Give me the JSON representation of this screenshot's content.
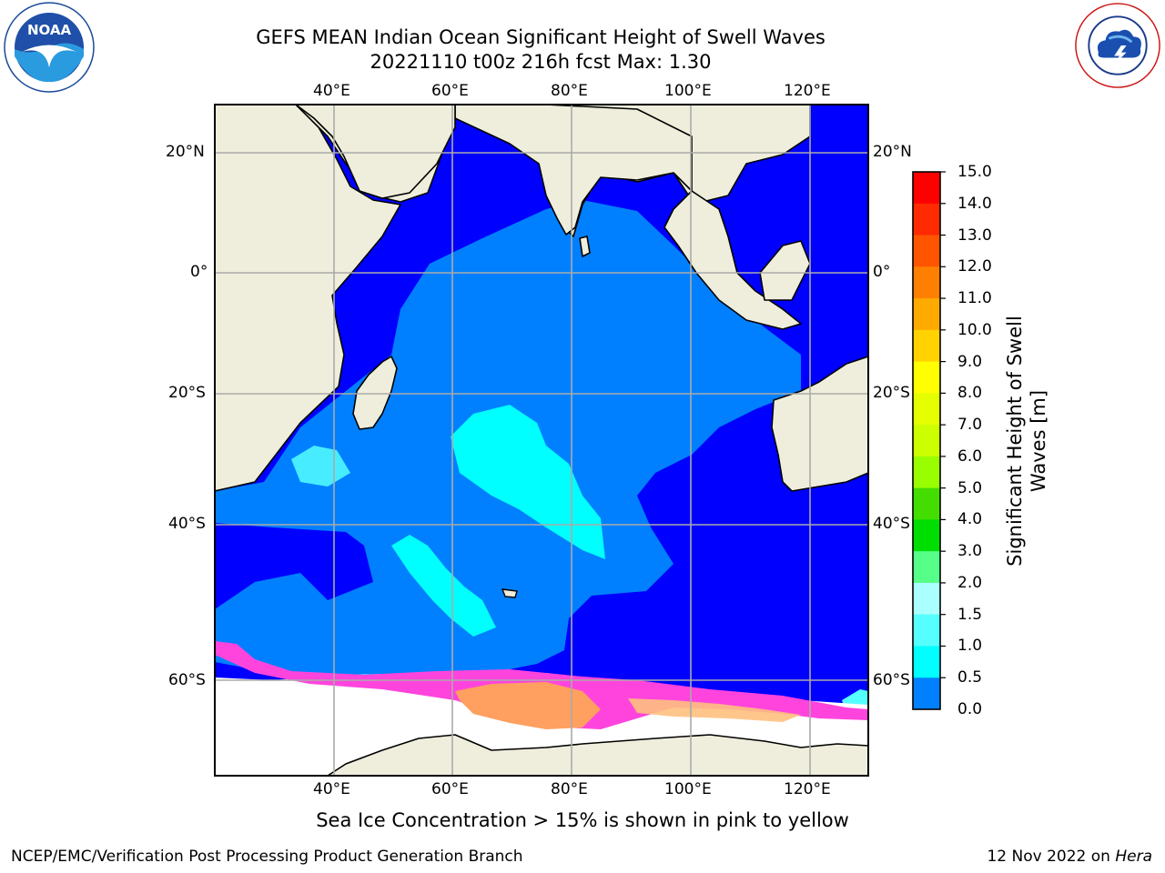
{
  "header": {
    "title_line1": "GEFS MEAN Indian Ocean Significant Height of Swell Waves",
    "title_line2": "20221110 t00z 216h fcst   Max: 1.30"
  },
  "logos": {
    "left": "NOAA",
    "left_ring": "NATIONAL OCEANIC AND ATMOSPHERIC ADMINISTRATION · U.S. DEPARTMENT OF COMMERCE",
    "right_ring": "NATIONAL WEATHER SERVICE"
  },
  "map": {
    "lon_ticks": [
      "40°E",
      "60°E",
      "80°E",
      "100°E",
      "120°E"
    ],
    "lat_ticks": [
      "20°N",
      "0°",
      "20°S",
      "40°S",
      "60°S"
    ],
    "colors": {
      "land": "#efeedc",
      "swell_0_05": "#0000ff",
      "swell_05_1": "#0080ff",
      "swell_1_15": "#00ffff",
      "ice_pink": "#ff44dd",
      "ice_orange": "#ffa060",
      "ice_free": "#ffffff"
    }
  },
  "colorbar": {
    "title": "Significant Height of Swell Waves [m]",
    "labels": [
      "15.0",
      "14.0",
      "13.0",
      "12.0",
      "11.0",
      "10.0",
      "9.0",
      "8.0",
      "7.0",
      "6.0",
      "5.0",
      "4.0",
      "3.0",
      "2.0",
      "1.5",
      "1.0",
      "0.5",
      "0.0"
    ],
    "colors": [
      "#ff0000",
      "#ff2a00",
      "#ff5500",
      "#ff8000",
      "#ffaa00",
      "#ffd200",
      "#ffff00",
      "#e5ff00",
      "#ccff00",
      "#99ff00",
      "#44dd00",
      "#00dd00",
      "#55ff88",
      "#aaffff",
      "#55ffff",
      "#00ffff",
      "#0080ff",
      "#0000ff"
    ]
  },
  "note": "Sea Ice Concentration > 15% is shown in pink to yellow",
  "footer": {
    "left": "NCEP/EMC/Verification Post Processing Product Generation Branch",
    "date": "12 Nov 2022 on ",
    "host": "Hera"
  }
}
